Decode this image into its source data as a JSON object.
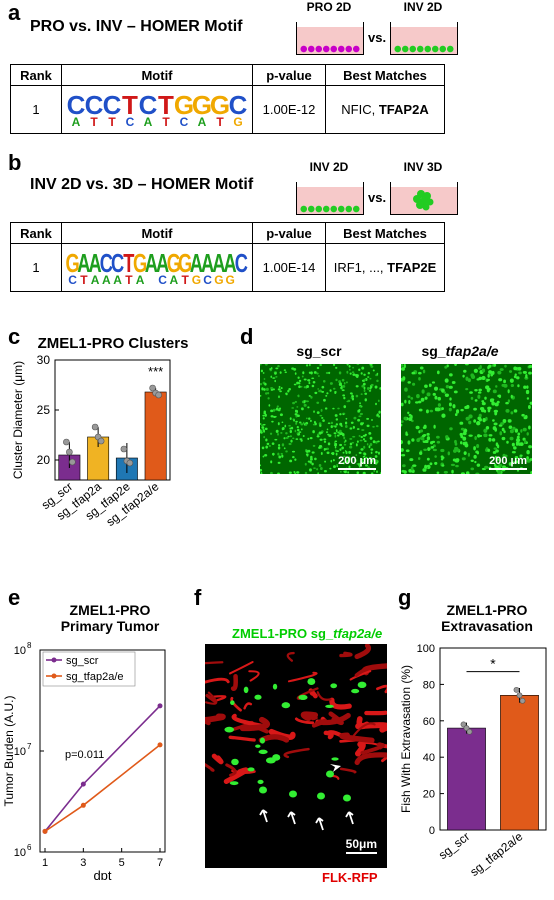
{
  "panel_a": {
    "letter": "a",
    "title": "PRO vs. INV – HOMER Motif",
    "well_left_label": "PRO 2D",
    "well_right_label": "INV 2D",
    "vs": "vs.",
    "dot_color_left": "#c800c8",
    "dot_color_right": "#22cc22",
    "headers": [
      "Rank",
      "Motif",
      "p-value",
      "Best Matches"
    ],
    "row": {
      "rank": "1",
      "motif_top": "CCCTCTGGGC",
      "motif_bottom": "ATTCATCATG",
      "pvalue": "1.00E-12",
      "matches_plain": "NFIC, ",
      "matches_bold": "TFAP2A"
    }
  },
  "panel_b": {
    "letter": "b",
    "title": "INV 2D vs. 3D – HOMER Motif",
    "well_left_label": "INV 2D",
    "well_right_label": "INV 3D",
    "vs": "vs.",
    "headers": [
      "Rank",
      "Motif",
      "p-value",
      "Best Matches"
    ],
    "row": {
      "rank": "1",
      "motif_top": "GAACCTGAAGGAAAAC",
      "motif_bottom": "CTAAATAXCATGCGG",
      "pvalue": "1.00E-14",
      "matches_plain": "IRF1, ..., ",
      "matches_bold": "TFAP2E"
    }
  },
  "panel_c": {
    "letter": "c",
    "chart_data": {
      "type": "bar",
      "title": "ZMEL1-PRO Clusters",
      "ylabel": "Cluster Diameter (μm)",
      "xlabel": "",
      "ylim": [
        18,
        30
      ],
      "yticks": [
        "20",
        "25",
        "30"
      ],
      "categories": [
        "sg_scr",
        "sg_tfap2a",
        "sg_tfap2e",
        "sg_tfap2a/e"
      ],
      "values": [
        20.5,
        22.3,
        20.2,
        26.8
      ],
      "errors": [
        1.3,
        1.0,
        1.5,
        0.4
      ],
      "colors": [
        "#7b2d8e",
        "#f0b323",
        "#1f77b4",
        "#e05a1a"
      ],
      "points": [
        [
          21.8,
          20.8,
          19.8
        ],
        [
          23.3,
          22.3,
          21.9
        ],
        [
          21.1,
          19.9,
          19.7
        ],
        [
          27.2,
          26.7,
          26.5
        ]
      ],
      "annotation": "***"
    }
  },
  "panel_d": {
    "letter": "d",
    "left_title": "sg_scr",
    "right_title_plain": "sg_",
    "right_title_italic": "tfap2a/e",
    "scalebar_left": "200 μm",
    "scalebar_right": "200 μm"
  },
  "panel_e": {
    "letter": "e",
    "chart_data": {
      "type": "line",
      "title": "ZMEL1-PRO\nPrimary Tumor",
      "title_line1": "ZMEL1-PRO",
      "title_line2": "Primary Tumor",
      "xlabel": "dpt",
      "ylabel": "Tumor Burden (A.U.)",
      "yscale": "log",
      "ylim": [
        1000000,
        100000000
      ],
      "xlim": [
        1,
        7
      ],
      "xticks": [
        "1",
        "3",
        "5",
        "7"
      ],
      "yticks": [
        "10",
        "10",
        "10"
      ],
      "ytick_exponents": [
        "6",
        "7",
        "8"
      ],
      "x": [
        1,
        3,
        7
      ],
      "series": [
        {
          "name": "sg_scr",
          "color": "#7b2d8e",
          "values": [
            1600000,
            4700000,
            28000000
          ]
        },
        {
          "name": "sg_tfap2a/e",
          "color": "#e05a1a",
          "values": [
            1600000,
            2900000,
            11500000
          ]
        }
      ],
      "annotation": "p=0.011"
    }
  },
  "panel_f": {
    "letter": "f",
    "title_plain": "ZMEL1-PRO sg_",
    "title_italic": "tfap2a/e",
    "scalebar": "50μm",
    "channel_label": "FLK-RFP"
  },
  "panel_g": {
    "letter": "g",
    "chart_data": {
      "type": "bar",
      "title": "ZMEL1-PRO\nExtravasation",
      "title_line1": "ZMEL1-PRO",
      "title_line2": "Extravasation",
      "ylabel": "Fish With Extravasation (%)",
      "xlabel": "",
      "ylim": [
        0,
        100
      ],
      "yticks": [
        "0",
        "20",
        "40",
        "60",
        "80",
        "100"
      ],
      "categories": [
        "sg_scr",
        "sg_tfap2a/e"
      ],
      "values": [
        56,
        74
      ],
      "errors": [
        3,
        4
      ],
      "colors": [
        "#7b2d8e",
        "#e05a1a"
      ],
      "points": [
        [
          58,
          56,
          54
        ],
        [
          77,
          74,
          71
        ]
      ],
      "annotation": "*"
    }
  }
}
